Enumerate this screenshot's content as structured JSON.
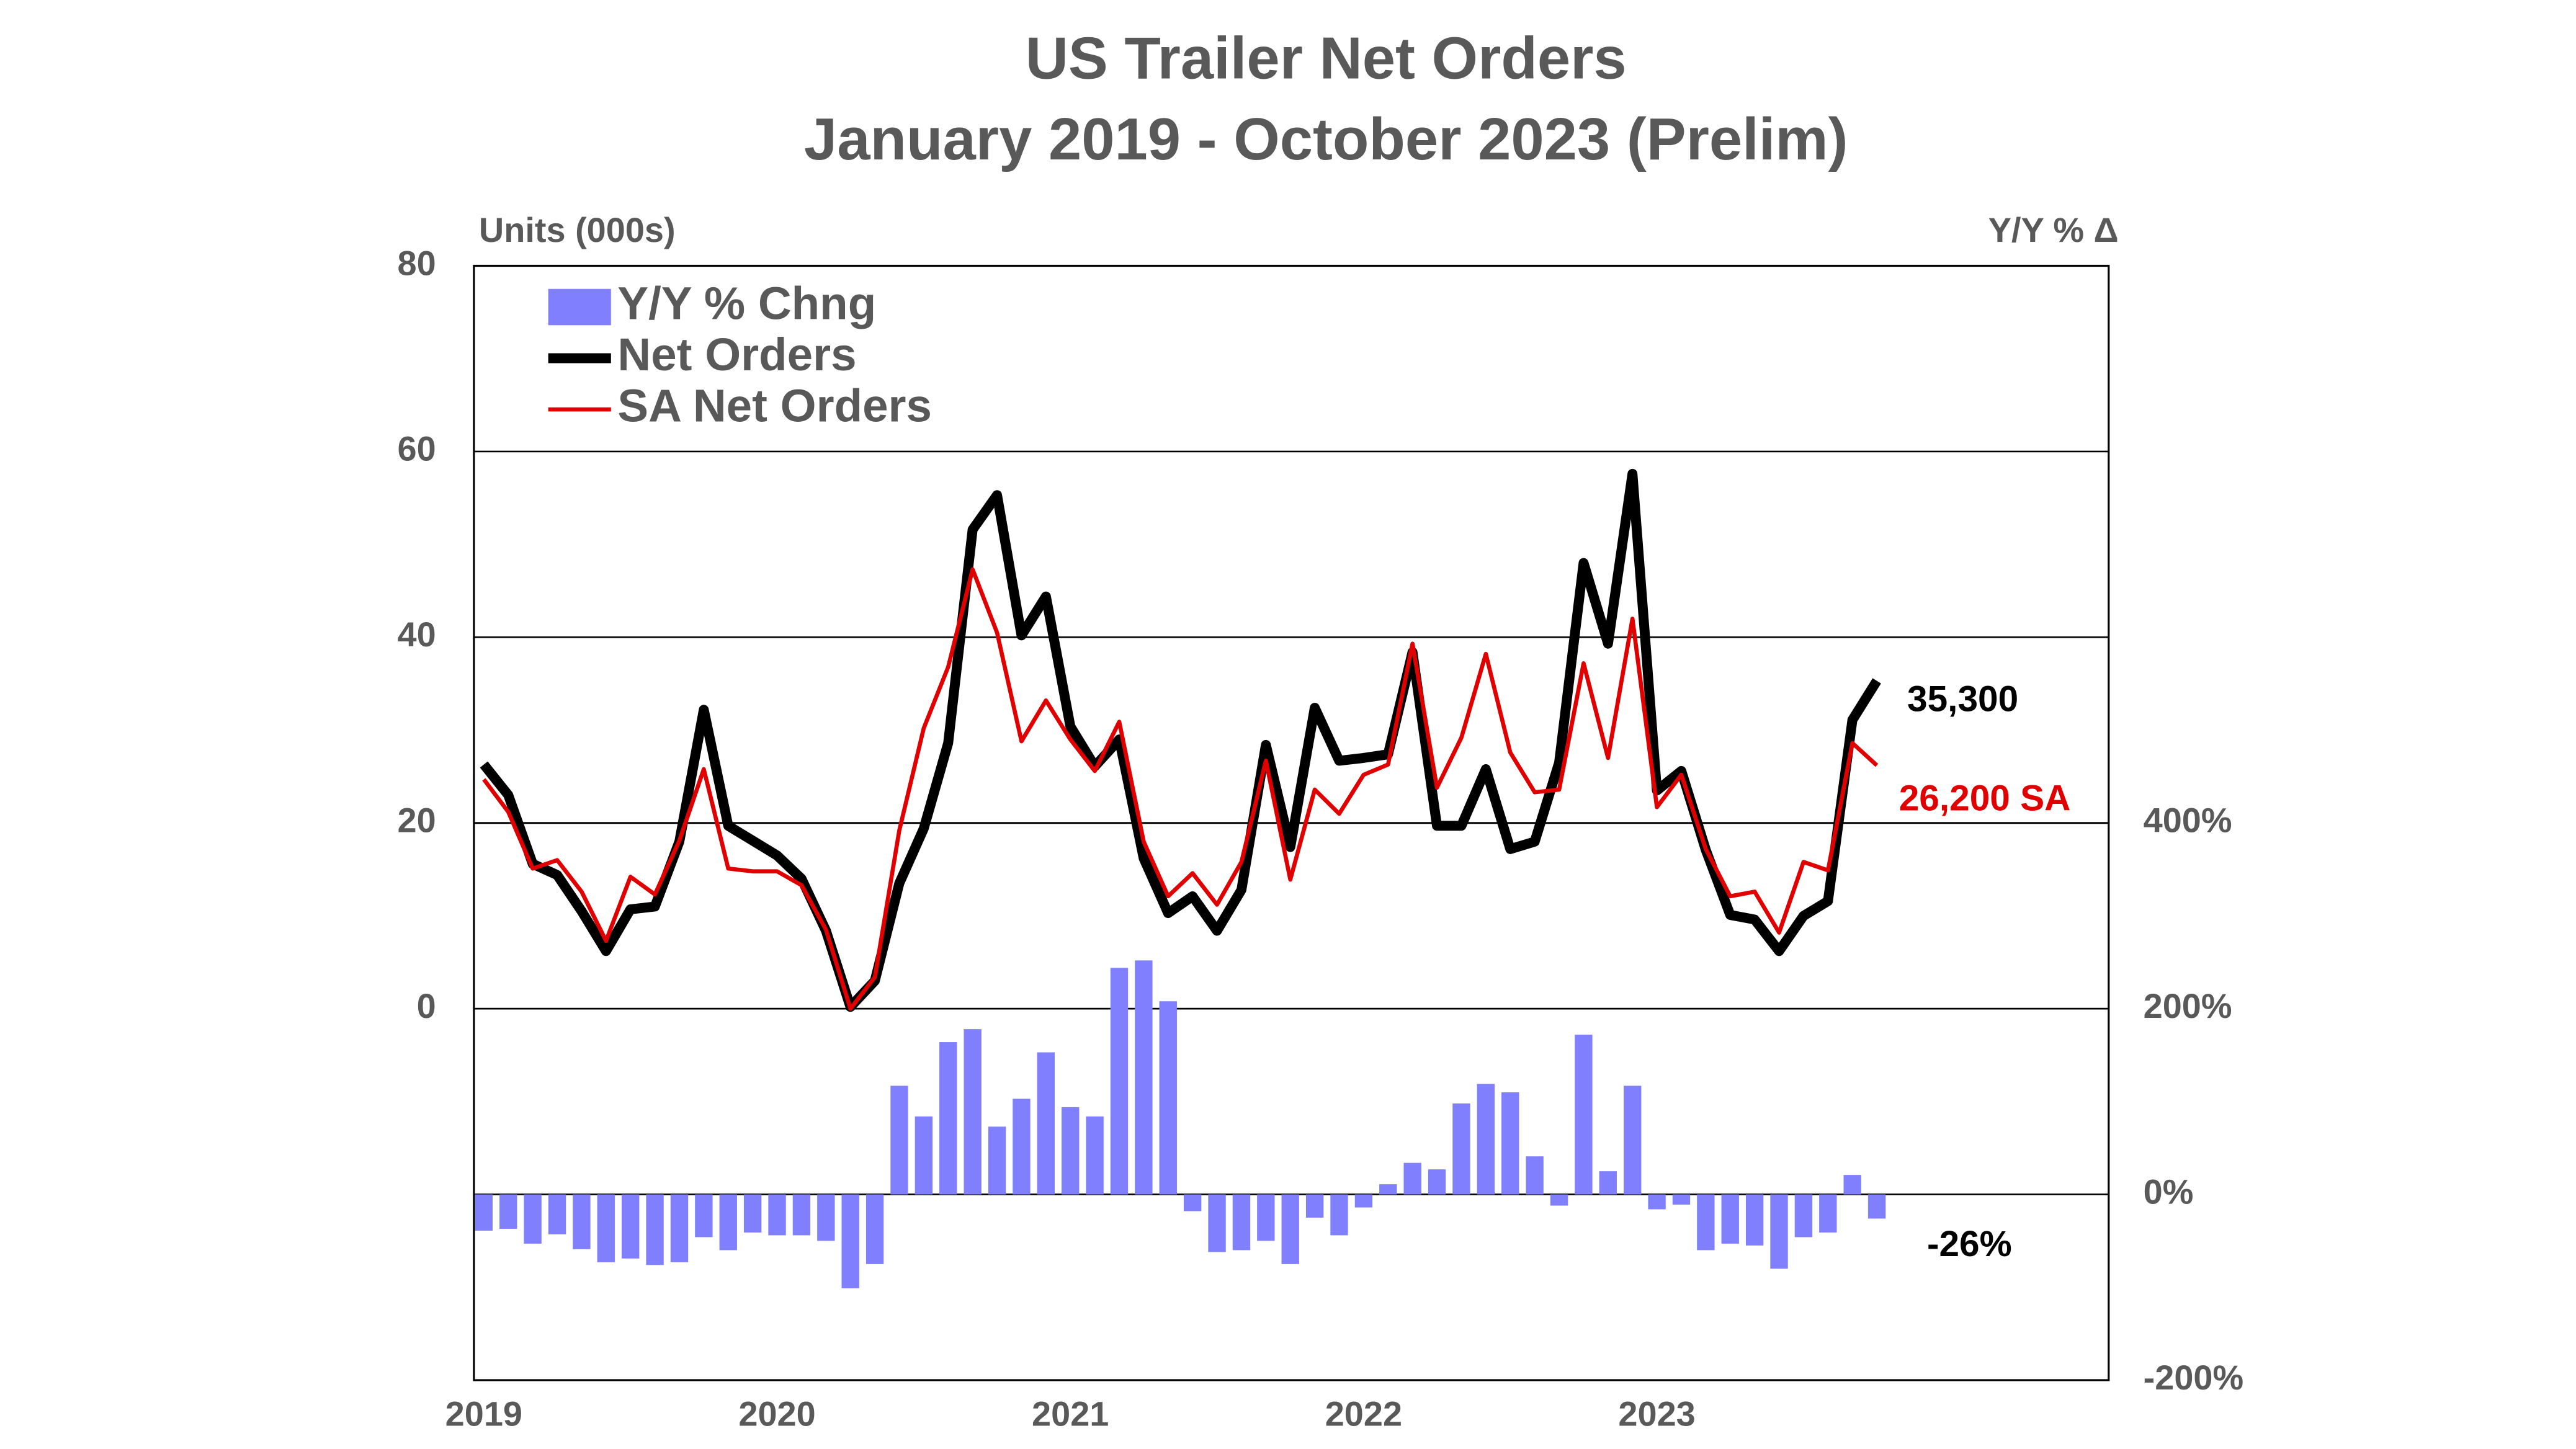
{
  "chart_data": {
    "type": "combo",
    "title": "US Trailer Net Orders",
    "subtitle": "January 2019 - October 2023 (Prelim)",
    "y_label": "Units (000s)",
    "y2_label": "Y/Y % Δ",
    "categories": [
      "2019",
      null,
      null,
      null,
      null,
      null,
      null,
      null,
      null,
      null,
      null,
      null,
      "2020",
      null,
      null,
      null,
      null,
      null,
      null,
      null,
      null,
      null,
      null,
      null,
      "2021",
      null,
      null,
      null,
      null,
      null,
      null,
      null,
      null,
      null,
      null,
      null,
      "2022",
      null,
      null,
      null,
      null,
      null,
      null,
      null,
      null,
      null,
      null,
      null,
      "2023",
      null,
      null,
      null,
      null,
      null,
      null,
      null,
      null,
      null
    ],
    "ylim": [
      -40,
      80
    ],
    "yticks": [
      0,
      20,
      40,
      60,
      80
    ],
    "y2lim": [
      -200,
      1000
    ],
    "y2ticks": [
      {
        "value": -200,
        "label": "-200%"
      },
      {
        "value": 0,
        "label": "0%"
      },
      {
        "value": 200,
        "label": "200%"
      },
      {
        "value": 400,
        "label": "400%"
      }
    ],
    "grid": true,
    "legend": "top-left",
    "series": [
      {
        "name": "Y/Y % Chng",
        "type": "bar",
        "axis": "y2",
        "color": "#8080ff",
        "values": [
          -39,
          -37,
          -53,
          -43,
          -59,
          -73,
          -69,
          -76,
          -73,
          -46,
          -60,
          -41,
          -44,
          -44,
          -50,
          -101,
          -75,
          117,
          84,
          164,
          178,
          73,
          103,
          153,
          94,
          84,
          244,
          252,
          208,
          -18,
          -62,
          -60,
          -50,
          -75,
          -25,
          -44,
          -14,
          11,
          34,
          27,
          98,
          119,
          110,
          41,
          -12,
          172,
          25,
          117,
          -16,
          -11,
          -60,
          -53,
          -55,
          -80,
          -46,
          -41,
          21,
          -26
        ]
      },
      {
        "name": "Net Orders",
        "type": "line",
        "color": "#000000",
        "width": 6,
        "values": [
          26.3,
          23,
          15.6,
          14.4,
          10.5,
          6.2,
          10.7,
          11,
          18,
          32.2,
          19.7,
          18.1,
          16.5,
          14,
          8.4,
          0.2,
          3,
          13.5,
          19.4,
          28.6,
          51.6,
          55.3,
          40.2,
          44.4,
          30.4,
          26.1,
          29,
          16.2,
          10.3,
          12.1,
          8.4,
          12.8,
          28.4,
          17.4,
          32.4,
          26.7,
          27,
          27.4,
          38.4,
          19.7,
          19.7,
          25.8,
          17.2,
          18,
          26.5,
          48,
          39.3,
          57.6,
          23.5,
          25.6,
          17.1,
          10.1,
          9.6,
          6.2,
          10,
          11.6,
          31.1,
          35.3
        ]
      },
      {
        "name": "SA Net Orders",
        "type": "line",
        "color": "#e00000",
        "width": 2.5,
        "values": [
          24.7,
          21.2,
          15.1,
          16,
          12.6,
          7.3,
          14.2,
          12.3,
          18.1,
          25.8,
          15.1,
          14.8,
          14.8,
          13.3,
          8.5,
          0,
          3.4,
          19.2,
          30.2,
          36.8,
          47.3,
          40.5,
          28.8,
          33.2,
          29,
          25.6,
          30.9,
          18,
          12.1,
          14.6,
          11.2,
          15.8,
          26.7,
          13.9,
          23.6,
          21,
          25.2,
          26.3,
          39.3,
          23.8,
          29.2,
          38.2,
          27.6,
          23.3,
          23.6,
          37.2,
          27,
          42,
          21.7,
          25.2,
          17.2,
          12.1,
          12.6,
          8.2,
          15.8,
          14.9,
          28.6,
          26.2
        ]
      }
    ],
    "annotations": [
      {
        "text": "35,300",
        "color": "#000000"
      },
      {
        "text": "26,200 SA",
        "color": "#e00000"
      },
      {
        "text": "-26%",
        "color": "#000000"
      }
    ]
  }
}
